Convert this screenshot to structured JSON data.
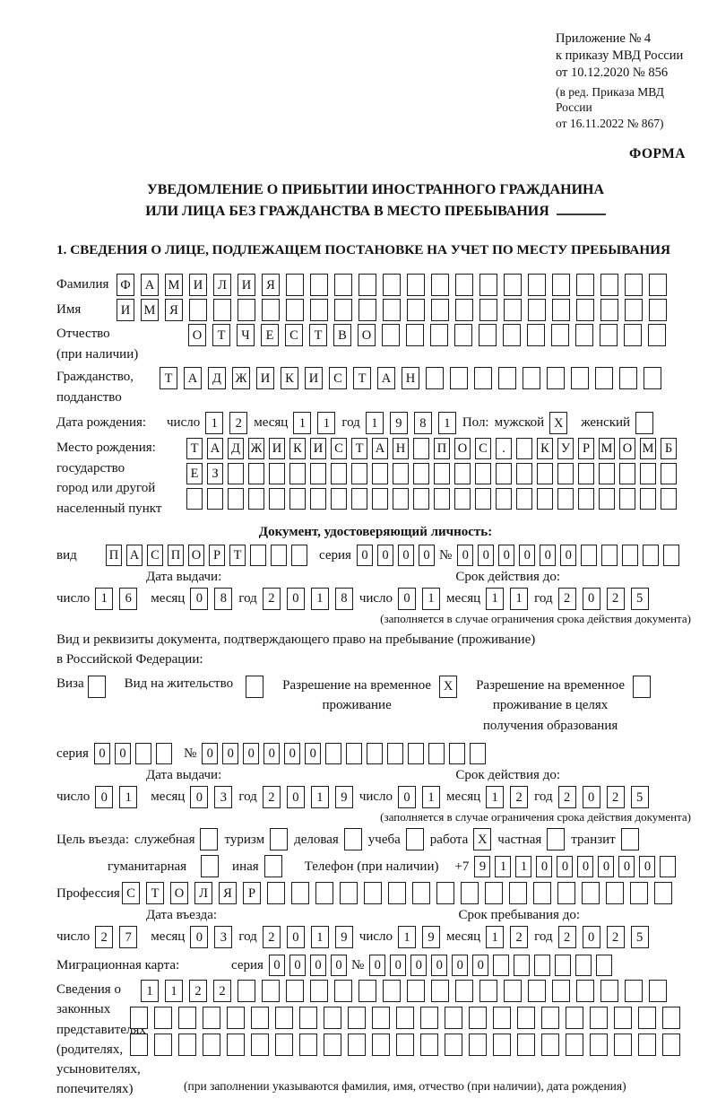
{
  "labels": {
    "day": "число",
    "month": "месяц",
    "year": "год",
    "series": "серия",
    "number": "№"
  },
  "header": {
    "annex_lines": [
      "Приложение № 4",
      "к приказу МВД России",
      "от 10.12.2020 № 856"
    ],
    "edition_lines": [
      "(в ред. Приказа МВД России",
      "от 16.11.2022 № 867)"
    ],
    "form_label": "ФОРМА"
  },
  "title": {
    "line1": "УВЕДОМЛЕНИЕ О ПРИБЫТИИ ИНОСТРАННОГО ГРАЖДАНИНА",
    "line2": "ИЛИ ЛИЦА БЕЗ ГРАЖДАНСТВА В МЕСТО ПРЕБЫВАНИЯ"
  },
  "section1": {
    "heading": "1. СВЕДЕНИЯ О ЛИЦЕ, ПОДЛЕЖАЩЕМ ПОСТАНОВКЕ НА УЧЕТ ПО МЕСТУ ПРЕБЫВАНИЯ"
  },
  "fields": {
    "surname": {
      "label": "Фамилия",
      "cells": {
        "v": "ФАМИЛИЯ",
        "n": 23
      }
    },
    "given_name": {
      "label": "Имя",
      "cells": {
        "v": "ИМЯ",
        "n": 23
      }
    },
    "patronymic": {
      "label1": "Отчество",
      "label2": "(при наличии)",
      "cells": {
        "v": "ОТЧЕСТВО",
        "n": 20
      }
    },
    "citizenship": {
      "label1": "Гражданство,",
      "label2": "подданство",
      "cells": {
        "v": "ТАДЖИКИСТАН",
        "n": 21
      }
    },
    "birth_date": {
      "label": "Дата рождения:",
      "day": {
        "v": "12"
      },
      "month": {
        "v": "11"
      },
      "year": {
        "v": "1981"
      },
      "sex_label": "Пол:",
      "male_label": "мужской",
      "male": {
        "v": "X",
        "n": 1
      },
      "female_label": "женский",
      "female": {
        "v": "",
        "n": 1
      }
    },
    "birth_place": {
      "label_lines": [
        "Место рождения:",
        "государство",
        "город или другой",
        "населенный пункт"
      ],
      "row1": {
        "v": "ТАДЖИКИСТАН ПОС. КУРМОМБ",
        "n": 24
      },
      "row2": {
        "v": "ЕЗ",
        "n": 24
      },
      "row3": {
        "v": "",
        "n": 24
      }
    }
  },
  "identity_doc": {
    "heading": "Документ, удостоверяющий личность:",
    "kind_label": "вид",
    "kind": {
      "v": "ПАСПОРТ",
      "n": 10
    },
    "series": {
      "v": "0000",
      "n": 4
    },
    "number": {
      "v": "000000",
      "n": 11
    },
    "issue": {
      "header": "Дата выдачи:",
      "day": {
        "v": "16"
      },
      "month": {
        "v": "08"
      },
      "year": {
        "v": "2018"
      }
    },
    "valid": {
      "header": "Срок действия до:",
      "day": {
        "v": "01"
      },
      "month": {
        "v": "11"
      },
      "year": {
        "v": "2025"
      },
      "note": "(заполняется в случае ограничения срока действия документа)"
    }
  },
  "resident_doc": {
    "line1": "Вид и реквизиты документа, подтверждающего право на пребывание (проживание)",
    "line2": "в Российской Федерации:",
    "opt1_label": "Виза",
    "opt1": {
      "v": "",
      "n": 1
    },
    "opt2_label": "Вид на жительство",
    "opt2": {
      "v": "",
      "n": 1
    },
    "opt3_lines": [
      "Разрешение на временное",
      "проживание"
    ],
    "opt3": {
      "v": "X",
      "n": 1
    },
    "opt4_lines": [
      "Разрешение на временное",
      "проживание в целях",
      "получения образования"
    ],
    "opt4": {
      "v": "",
      "n": 1
    },
    "series": {
      "v": "00",
      "n": 4
    },
    "number": {
      "v": "000000",
      "n": 14
    },
    "issue": {
      "header": "Дата выдачи:",
      "day": {
        "v": "01"
      },
      "month": {
        "v": "03"
      },
      "year": {
        "v": "2019"
      }
    },
    "valid": {
      "header": "Срок действия до:",
      "day": {
        "v": "01"
      },
      "month": {
        "v": "12"
      },
      "year": {
        "v": "2025"
      },
      "note": "(заполняется в случае ограничения срока действия документа)"
    }
  },
  "purpose": {
    "label": "Цель въезда:",
    "options": [
      {
        "label": "служебная",
        "cb": {
          "v": "",
          "n": 1
        }
      },
      {
        "label": "туризм",
        "cb": {
          "v": "",
          "n": 1
        }
      },
      {
        "label": "деловая",
        "cb": {
          "v": "",
          "n": 1
        }
      },
      {
        "label": "учеба",
        "cb": {
          "v": "",
          "n": 1
        }
      },
      {
        "label": "работа",
        "cb": {
          "v": "X",
          "n": 1
        }
      },
      {
        "label": "частная",
        "cb": {
          "v": "",
          "n": 1
        }
      },
      {
        "label": "транзит",
        "cb": {
          "v": "",
          "n": 1
        }
      },
      {
        "label": "гуманитарная",
        "cb": {
          "v": "",
          "n": 1
        }
      },
      {
        "label": "иная",
        "cb": {
          "v": "",
          "n": 1
        }
      }
    ]
  },
  "phone": {
    "label": "Телефон (при наличии)",
    "prefix": "+7",
    "cells": {
      "v": "911000000",
      "n": 10
    }
  },
  "profession": {
    "label": "Профессия",
    "cells": {
      "v": "СТОЛЯР",
      "n": 23
    }
  },
  "entry": {
    "issue": {
      "header": "Дата въезда:",
      "day": {
        "v": "27"
      },
      "month": {
        "v": "03"
      },
      "year": {
        "v": "2019"
      }
    },
    "stay": {
      "header": "Срок пребывания до:",
      "day": {
        "v": "19"
      },
      "month": {
        "v": "12"
      },
      "year": {
        "v": "2025"
      }
    }
  },
  "migration_card": {
    "label": "Миграционная карта:",
    "series": {
      "v": "0000",
      "n": 4
    },
    "number": {
      "v": "000000",
      "n": 12
    }
  },
  "legal_reps": {
    "label_lines": [
      "Сведения о",
      "законных",
      "представителях",
      "(родителях,",
      "усыновителях,",
      "попечителях)"
    ],
    "row1": {
      "v": "1122",
      "n": 22
    },
    "row2": {
      "v": "",
      "n": 23
    },
    "row3": {
      "v": "",
      "n": 23
    },
    "note": "(при заполнении указываются фамилия, имя, отчество (при наличии), дата рождения)"
  }
}
